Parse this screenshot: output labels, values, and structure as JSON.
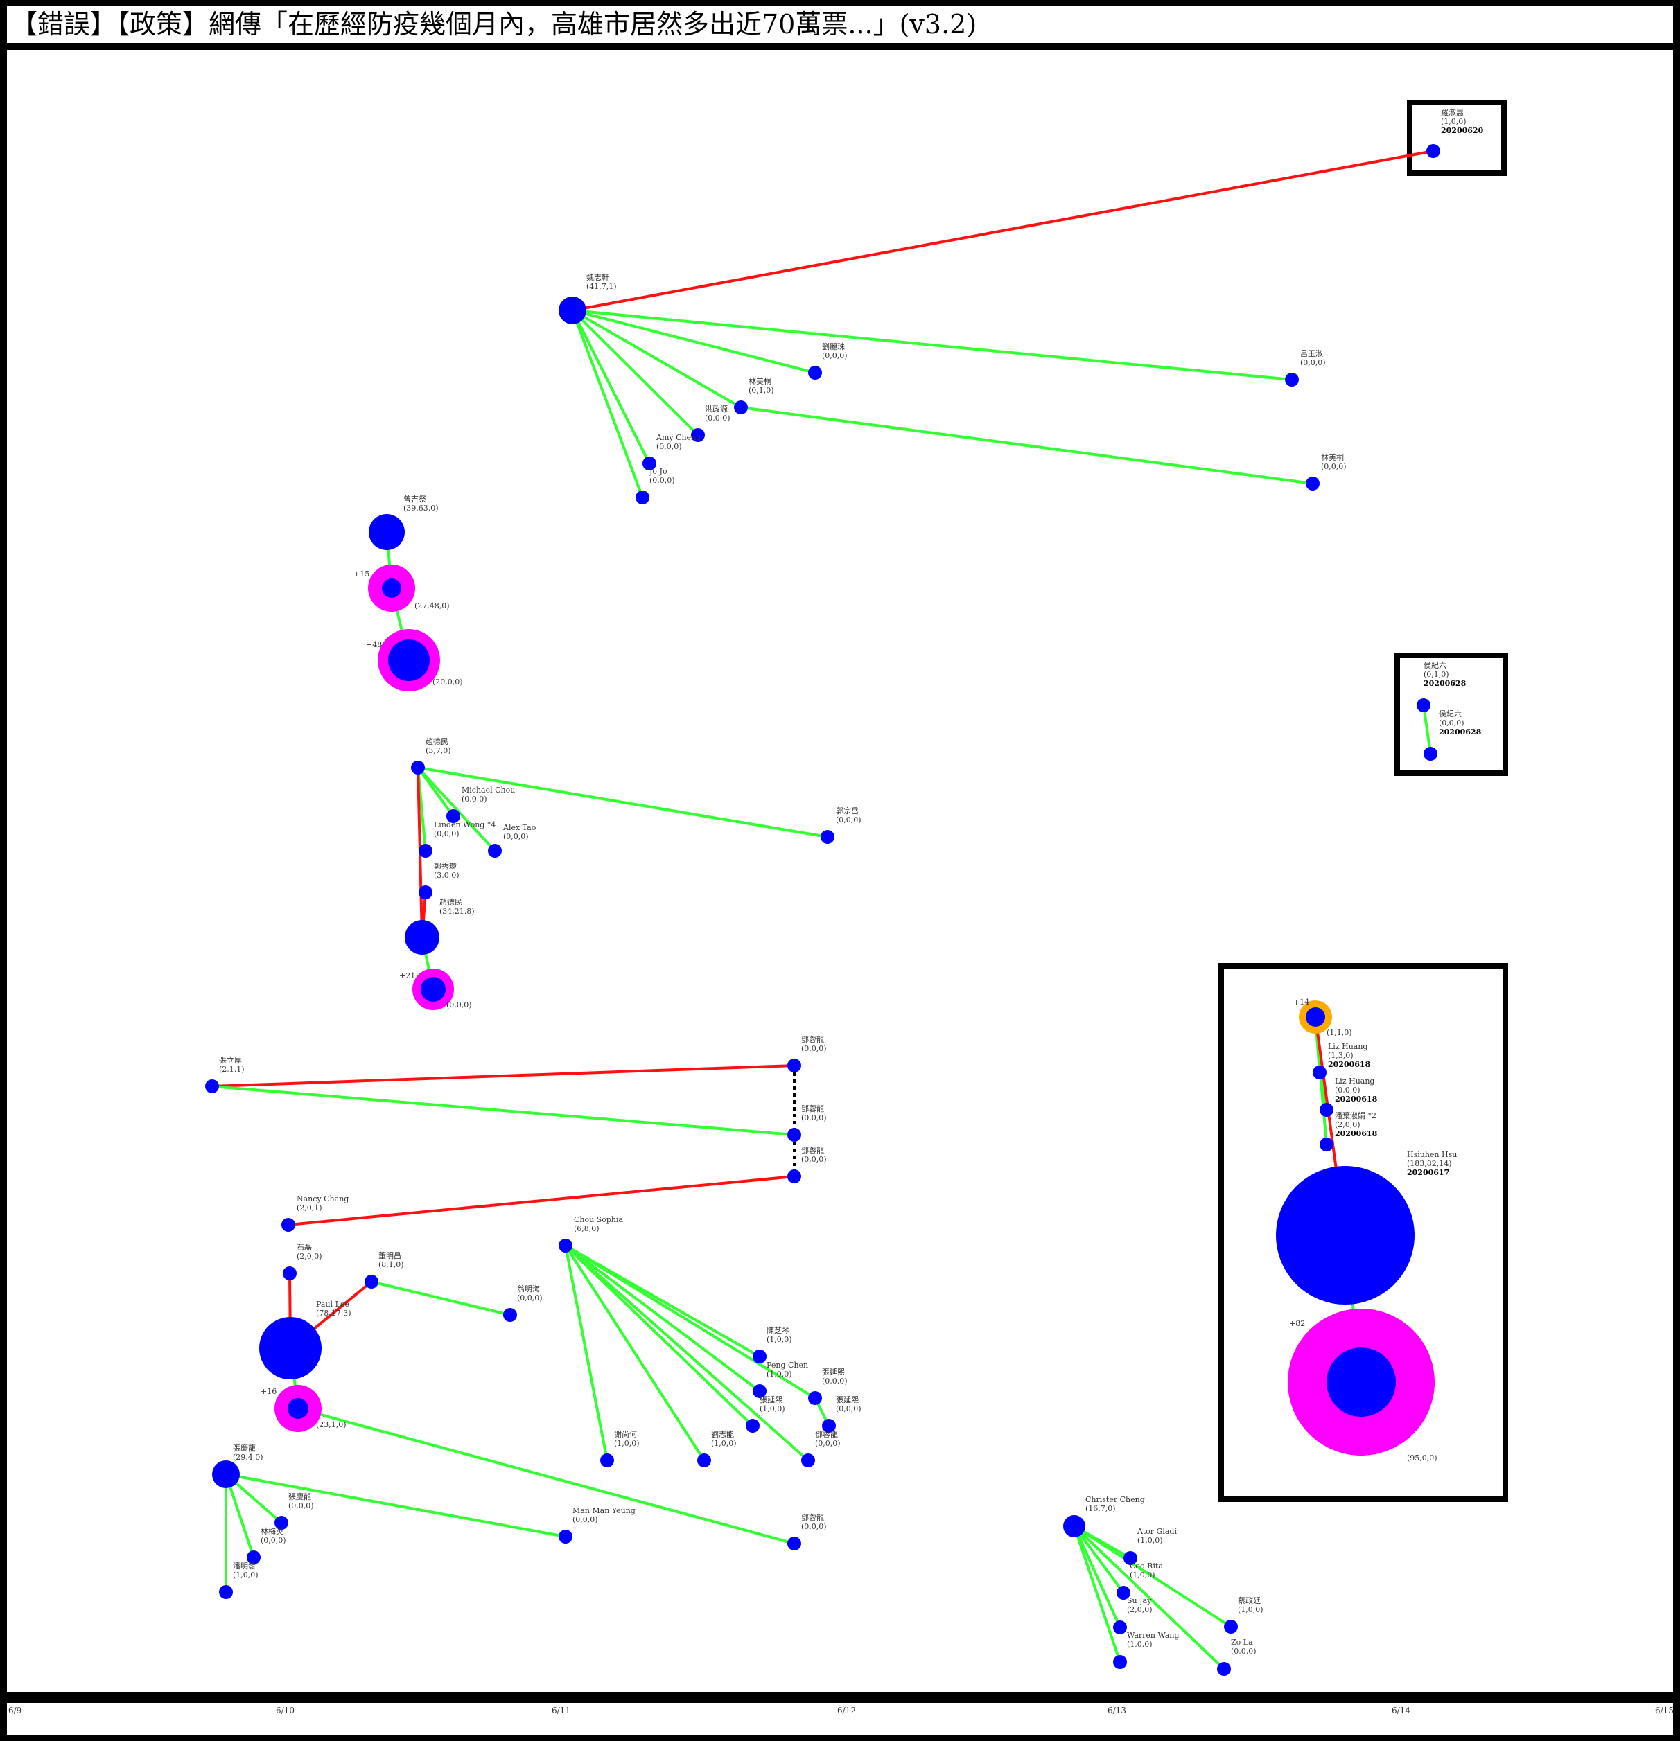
{
  "title": "【錯誤】【政策】網傳「在歷經防疫幾個月內，高雄市居然多出近70萬票...」(v3.2)",
  "axis": {
    "ticks": [
      "6/9",
      "6/10",
      "6/11",
      "6/12",
      "6/13",
      "6/14",
      "6/15"
    ]
  },
  "colors": {
    "red": "#ff1111",
    "green": "#33ff33",
    "blue": "#0000ff",
    "magenta": "#ff00ff",
    "orange": "#ffaa00",
    "black": "#000000"
  },
  "nodes": [
    {
      "id": "n1",
      "name": "羅淑惠",
      "counts": "(1,0,0)",
      "date": "20200620"
    },
    {
      "id": "n2",
      "name": "魏志軒",
      "counts": "(41,7,1)"
    },
    {
      "id": "n3",
      "name": "劉麗珠",
      "counts": "(0,0,0)"
    },
    {
      "id": "n4",
      "name": "呂玉淑",
      "counts": "(0,0,0)"
    },
    {
      "id": "n5",
      "name": "林美桐",
      "counts": "(0,1,0)"
    },
    {
      "id": "n6",
      "name": "洪政源",
      "counts": "(0,0,0)"
    },
    {
      "id": "n7",
      "name": "Amy Cheng",
      "counts": "(0,0,0)"
    },
    {
      "id": "n8",
      "name": "Jo Jo",
      "counts": "(0,0,0)"
    },
    {
      "id": "n9",
      "name": "林美桐",
      "counts": "(0,0,0)"
    },
    {
      "id": "n10",
      "name": "曾吉祭",
      "counts": "(39,63,0)"
    },
    {
      "id": "n11",
      "name": "",
      "counts": "(27,48,0)",
      "share": "+15"
    },
    {
      "id": "n12",
      "name": "",
      "counts": "(20,0,0)",
      "share": "+48"
    },
    {
      "id": "n13",
      "name": "侯紀六",
      "counts": "(0,1,0)",
      "date": "20200628"
    },
    {
      "id": "n14",
      "name": "侯紀六",
      "counts": "(0,0,0)",
      "date": "20200628"
    },
    {
      "id": "n15",
      "name": "趙德民",
      "counts": "(3,7,0)"
    },
    {
      "id": "n16",
      "name": "Michael Chou",
      "counts": "(0,0,0)"
    },
    {
      "id": "n17",
      "name": "Linden Wong *4",
      "counts": "(0,0,0)"
    },
    {
      "id": "n18",
      "name": "Alex Tao",
      "counts": "(0,0,0)"
    },
    {
      "id": "n19",
      "name": "郭宗岳",
      "counts": "(0,0,0)"
    },
    {
      "id": "n20",
      "name": "鄭秀瓊",
      "counts": "(3,0,0)"
    },
    {
      "id": "n21",
      "name": "趙德民",
      "counts": "(34,21,8)"
    },
    {
      "id": "n22",
      "name": "",
      "counts": "(0,0,0)",
      "share": "+21"
    },
    {
      "id": "n23",
      "name": "",
      "counts": "(1,1,0)",
      "share": "+14"
    },
    {
      "id": "n24",
      "name": "Liz Huang",
      "counts": "(1,3,0)",
      "date": "20200618"
    },
    {
      "id": "n25",
      "name": "Liz Huang",
      "counts": "(0,0,0)",
      "date": "20200618"
    },
    {
      "id": "n26",
      "name": "潘葉淑娟 *2",
      "counts": "(2,0,0)",
      "date": "20200618"
    },
    {
      "id": "n27",
      "name": "Hsiuhen Hsu",
      "counts": "(183,82,14)",
      "date": "20200617"
    },
    {
      "id": "n28",
      "name": "",
      "counts": "(95,0,0)",
      "share": "+82"
    },
    {
      "id": "n29",
      "name": "張立厚",
      "counts": "(2,1,1)"
    },
    {
      "id": "n30",
      "name": "鄧蓉龍",
      "counts": "(0,0,0)"
    },
    {
      "id": "n31",
      "name": "鄧蓉龍",
      "counts": "(0,0,0)"
    },
    {
      "id": "n32",
      "name": "鄧蓉龍",
      "counts": "(0,0,0)"
    },
    {
      "id": "n33",
      "name": "Nancy Chang",
      "counts": "(2,0,1)"
    },
    {
      "id": "n34",
      "name": "石磊",
      "counts": "(2,0,0)"
    },
    {
      "id": "n35",
      "name": "董明昌",
      "counts": "(8,1,0)"
    },
    {
      "id": "n36",
      "name": "翁明海",
      "counts": "(0,0,0)"
    },
    {
      "id": "n37",
      "name": "Paul Lee",
      "counts": "(78,17,3)"
    },
    {
      "id": "n38",
      "name": "",
      "counts": "(23,1,0)",
      "share": "+16"
    },
    {
      "id": "n39",
      "name": "Chou Sophia",
      "counts": "(6,8,0)"
    },
    {
      "id": "n40",
      "name": "陳芝琴",
      "counts": "(1,0,0)"
    },
    {
      "id": "n41",
      "name": "Peng Chen",
      "counts": "(1,0,0)"
    },
    {
      "id": "n42",
      "name": "張延熙",
      "counts": "(0,0,0)"
    },
    {
      "id": "n43",
      "name": "張延熙",
      "counts": "(1,0,0)"
    },
    {
      "id": "n44",
      "name": "張延熙",
      "counts": "(0,0,0)"
    },
    {
      "id": "n45",
      "name": "謝尚何",
      "counts": "(1,0,0)"
    },
    {
      "id": "n46",
      "name": "劉志能",
      "counts": "(1,0,0)"
    },
    {
      "id": "n47",
      "name": "鄧蓉龍",
      "counts": "(0,0,0)"
    },
    {
      "id": "n48",
      "name": "張慶龍",
      "counts": "(29,4,0)"
    },
    {
      "id": "n49",
      "name": "張慶龍",
      "counts": "(0,0,0)"
    },
    {
      "id": "n50",
      "name": "林梅英",
      "counts": "(0,0,0)"
    },
    {
      "id": "n51",
      "name": "潘明發",
      "counts": "(1,0,0)"
    },
    {
      "id": "n52",
      "name": "Man Man Yeung",
      "counts": "(0,0,0)"
    },
    {
      "id": "n53",
      "name": "鄧蓉龍",
      "counts": "(0,0,0)"
    },
    {
      "id": "n54",
      "name": "Christer Cheng",
      "counts": "(16,7,0)"
    },
    {
      "id": "n55",
      "name": "Ator Gladi",
      "counts": "(1,0,0)"
    },
    {
      "id": "n56",
      "name": "Coo Rita",
      "counts": "(1,0,0)"
    },
    {
      "id": "n57",
      "name": "Su Jay",
      "counts": "(2,0,0)"
    },
    {
      "id": "n58",
      "name": "Warren Wang",
      "counts": "(1,0,0)"
    },
    {
      "id": "n59",
      "name": "蔡政廷",
      "counts": "(1,0,0)"
    },
    {
      "id": "n60",
      "name": "Zo La",
      "counts": "(0,0,0)"
    }
  ],
  "edges": [
    {
      "from": "n2",
      "to": "n1",
      "type": "red"
    },
    {
      "from": "n2",
      "to": "n3",
      "type": "green"
    },
    {
      "from": "n2",
      "to": "n4",
      "type": "green"
    },
    {
      "from": "n2",
      "to": "n5",
      "type": "green"
    },
    {
      "from": "n2",
      "to": "n6",
      "type": "green"
    },
    {
      "from": "n2",
      "to": "n7",
      "type": "green"
    },
    {
      "from": "n2",
      "to": "n8",
      "type": "green"
    },
    {
      "from": "n5",
      "to": "n9",
      "type": "green"
    },
    {
      "from": "n10",
      "to": "n11",
      "type": "green"
    },
    {
      "from": "n11",
      "to": "n12",
      "type": "green"
    },
    {
      "from": "n13",
      "to": "n14",
      "type": "green"
    },
    {
      "from": "n15",
      "to": "n16",
      "type": "green"
    },
    {
      "from": "n15",
      "to": "n17",
      "type": "green"
    },
    {
      "from": "n15",
      "to": "n18",
      "type": "green"
    },
    {
      "from": "n15",
      "to": "n19",
      "type": "green"
    },
    {
      "from": "n15",
      "to": "n21",
      "type": "red"
    },
    {
      "from": "n21",
      "to": "n20",
      "type": "red"
    },
    {
      "from": "n21",
      "to": "n22",
      "type": "green"
    },
    {
      "from": "n23",
      "to": "n24",
      "type": "green"
    },
    {
      "from": "n23",
      "to": "n25",
      "type": "green"
    },
    {
      "from": "n23",
      "to": "n26",
      "type": "green"
    },
    {
      "from": "n27",
      "to": "n23",
      "type": "red"
    },
    {
      "from": "n27",
      "to": "n28",
      "type": "green"
    },
    {
      "from": "n29",
      "to": "n30",
      "type": "red"
    },
    {
      "from": "n29",
      "to": "n31",
      "type": "green"
    },
    {
      "from": "n30",
      "to": "n31",
      "type": "dotted"
    },
    {
      "from": "n31",
      "to": "n32",
      "type": "dotted"
    },
    {
      "from": "n33",
      "to": "n32",
      "type": "red"
    },
    {
      "from": "n37",
      "to": "n34",
      "type": "red"
    },
    {
      "from": "n37",
      "to": "n35",
      "type": "red"
    },
    {
      "from": "n35",
      "to": "n36",
      "type": "green"
    },
    {
      "from": "n37",
      "to": "n38",
      "type": "green"
    },
    {
      "from": "n38",
      "to": "n53",
      "type": "green"
    },
    {
      "from": "n39",
      "to": "n40",
      "type": "green"
    },
    {
      "from": "n39",
      "to": "n41",
      "type": "green"
    },
    {
      "from": "n39",
      "to": "n42",
      "type": "green"
    },
    {
      "from": "n39",
      "to": "n43",
      "type": "green"
    },
    {
      "from": "n39",
      "to": "n45",
      "type": "green"
    },
    {
      "from": "n39",
      "to": "n46",
      "type": "green"
    },
    {
      "from": "n39",
      "to": "n47",
      "type": "green"
    },
    {
      "from": "n42",
      "to": "n44",
      "type": "green"
    },
    {
      "from": "n48",
      "to": "n49",
      "type": "green"
    },
    {
      "from": "n48",
      "to": "n50",
      "type": "green"
    },
    {
      "from": "n48",
      "to": "n51",
      "type": "green"
    },
    {
      "from": "n48",
      "to": "n52",
      "type": "green"
    },
    {
      "from": "n54",
      "to": "n55",
      "type": "green"
    },
    {
      "from": "n54",
      "to": "n56",
      "type": "green"
    },
    {
      "from": "n54",
      "to": "n57",
      "type": "green"
    },
    {
      "from": "n54",
      "to": "n58",
      "type": "green"
    },
    {
      "from": "n54",
      "to": "n59",
      "type": "green"
    },
    {
      "from": "n54",
      "to": "n60",
      "type": "green"
    }
  ]
}
